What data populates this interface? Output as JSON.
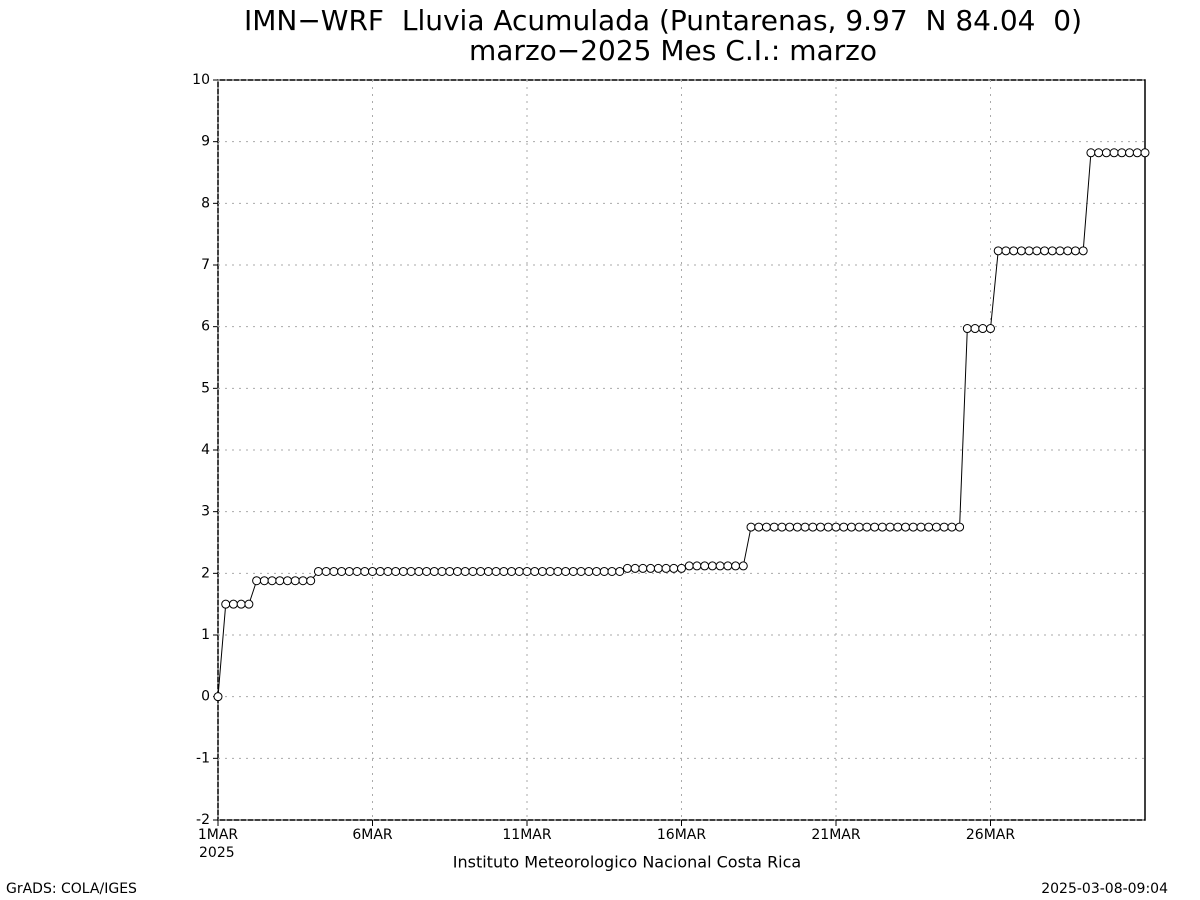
{
  "chart_data": {
    "type": "line",
    "title": "IMN−WRF  Lluvia Acumulada (Puntarenas, 9.97  N 84.04  0)",
    "subtitle": "marzo−2025 Mes C.I.: marzo",
    "x_axis_label": "Instituto Meteorologico Nacional Costa Rica",
    "x_year_label": "2025",
    "footer_left": "GrADS: COLA/IGES",
    "footer_right": "2025-03-08-09:04",
    "x": [
      0,
      0.25,
      0.5,
      0.75,
      1,
      1.25,
      1.5,
      1.75,
      2,
      2.25,
      2.5,
      2.75,
      3,
      3.25,
      3.5,
      3.75,
      4,
      4.25,
      4.5,
      4.75,
      5,
      5.25,
      5.5,
      5.75,
      6,
      6.25,
      6.5,
      6.75,
      7,
      7.25,
      7.5,
      7.75,
      8,
      8.25,
      8.5,
      8.75,
      9,
      9.25,
      9.5,
      9.75,
      10,
      10.25,
      10.5,
      10.75,
      11,
      11.25,
      11.5,
      11.75,
      12,
      12.25,
      12.5,
      12.75,
      13,
      13.25,
      13.5,
      13.75,
      14,
      14.25,
      14.5,
      14.75,
      15,
      15.25,
      15.5,
      15.75,
      16,
      16.25,
      16.5,
      16.75,
      17,
      17.25,
      17.5,
      17.75,
      18,
      18.25,
      18.5,
      18.75,
      19,
      19.25,
      19.5,
      19.75,
      20,
      20.25,
      20.5,
      20.75,
      21,
      21.25,
      21.5,
      21.75,
      22,
      22.25,
      22.5,
      22.75,
      23,
      23.25,
      23.5,
      23.75,
      24,
      24.25,
      24.5,
      24.75,
      25,
      25.25,
      25.5,
      25.75,
      26,
      26.25,
      26.5,
      26.75,
      27,
      27.25,
      27.5,
      27.75,
      28,
      28.25,
      28.5,
      28.75,
      29,
      29.25,
      29.5,
      29.75,
      30
    ],
    "series": [
      {
        "color": "#000000",
        "values": [
          0,
          1.5,
          1.5,
          1.5,
          1.5,
          1.88,
          1.88,
          1.88,
          1.88,
          1.88,
          1.88,
          1.88,
          1.88,
          2.03,
          2.03,
          2.03,
          2.03,
          2.03,
          2.03,
          2.03,
          2.03,
          2.03,
          2.03,
          2.03,
          2.03,
          2.03,
          2.03,
          2.03,
          2.03,
          2.03,
          2.03,
          2.03,
          2.03,
          2.03,
          2.03,
          2.03,
          2.03,
          2.03,
          2.03,
          2.03,
          2.03,
          2.03,
          2.03,
          2.03,
          2.03,
          2.03,
          2.03,
          2.03,
          2.03,
          2.03,
          2.03,
          2.03,
          2.03,
          2.08,
          2.08,
          2.08,
          2.08,
          2.08,
          2.08,
          2.08,
          2.08,
          2.12,
          2.12,
          2.12,
          2.12,
          2.12,
          2.12,
          2.12,
          2.12,
          2.75,
          2.75,
          2.75,
          2.75,
          2.75,
          2.75,
          2.75,
          2.75,
          2.75,
          2.75,
          2.75,
          2.75,
          2.75,
          2.75,
          2.75,
          2.75,
          2.75,
          2.75,
          2.75,
          2.75,
          2.75,
          2.75,
          2.75,
          2.75,
          2.75,
          2.75,
          2.75,
          2.75,
          5.97,
          5.97,
          5.97,
          5.97,
          7.23,
          7.23,
          7.23,
          7.23,
          7.23,
          7.23,
          7.23,
          7.23,
          7.23,
          7.23,
          7.23,
          7.23,
          8.82,
          8.82,
          8.82,
          8.82,
          8.82,
          8.82,
          8.82,
          8.82
        ]
      }
    ],
    "xlim": [
      0,
      30
    ],
    "xticks": [
      {
        "value": 0,
        "label": "1MAR"
      },
      {
        "value": 5,
        "label": "6MAR"
      },
      {
        "value": 10,
        "label": "11MAR"
      },
      {
        "value": 15,
        "label": "16MAR"
      },
      {
        "value": 20,
        "label": "21MAR"
      },
      {
        "value": 25,
        "label": "26MAR"
      }
    ],
    "ylim": [
      -2,
      10
    ],
    "yticks": [
      -2,
      -1,
      0,
      1,
      2,
      3,
      4,
      5,
      6,
      7,
      8,
      9,
      10
    ],
    "grid": true
  }
}
